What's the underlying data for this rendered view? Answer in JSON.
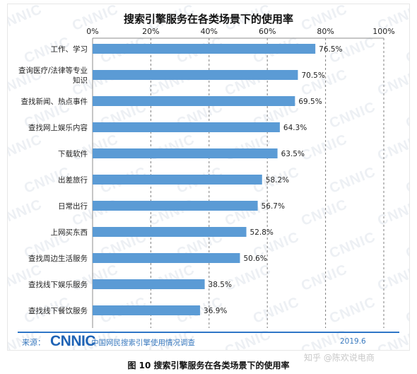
{
  "chart_data": {
    "type": "bar",
    "orientation": "horizontal",
    "title": "搜索引擎服务在各类场景下的使用率",
    "categories": [
      "工作、学习",
      "查询医疗/法律等专业知识",
      "查找新闻、热点事件",
      "查找网上娱乐内容",
      "下载软件",
      "出差旅行",
      "日常出行",
      "上网买东西",
      "查找周边生活服务",
      "查找线下娱乐服务",
      "查找线下餐饮服务"
    ],
    "category_display_lines": [
      [
        "工作、学习"
      ],
      [
        "查询医疗/法律等专业",
        "知识"
      ],
      [
        "查找新闻、热点事件"
      ],
      [
        "查找网上娱乐内容"
      ],
      [
        "下载软件"
      ],
      [
        "出差旅行"
      ],
      [
        "日常出行"
      ],
      [
        "上网买东西"
      ],
      [
        "查找周边生活服务"
      ],
      [
        "查找线下娱乐服务"
      ],
      [
        "查找线下餐饮服务"
      ]
    ],
    "values": [
      76.5,
      70.5,
      69.5,
      64.3,
      63.5,
      58.2,
      56.7,
      52.8,
      50.6,
      38.5,
      36.9
    ],
    "value_labels": [
      "76.5%",
      "70.5%",
      "69.5%",
      "64.3%",
      "63.5%",
      "58.2%",
      "56.7%",
      "52.8%",
      "50.6%",
      "38.5%",
      "36.9%"
    ],
    "xlim": [
      0,
      100
    ],
    "x_ticks": [
      0,
      20,
      40,
      60,
      80,
      100
    ],
    "x_tick_labels": [
      "0%",
      "20%",
      "40%",
      "60%",
      "80%",
      "100%"
    ],
    "xaxis_position": "top",
    "grid": "vertical dashed",
    "bar_color": "#5b9bd5"
  },
  "footer": {
    "source_label": "来源：",
    "logo_text": "CNNIC",
    "source_text": "中国网民搜索引擎使用情况调查",
    "date": "2019.6"
  },
  "watermark_text": "CNNIC",
  "credit": "知乎 @陈欢说电商",
  "caption": "图 10 搜索引擎服务在各类场景下的使用率"
}
